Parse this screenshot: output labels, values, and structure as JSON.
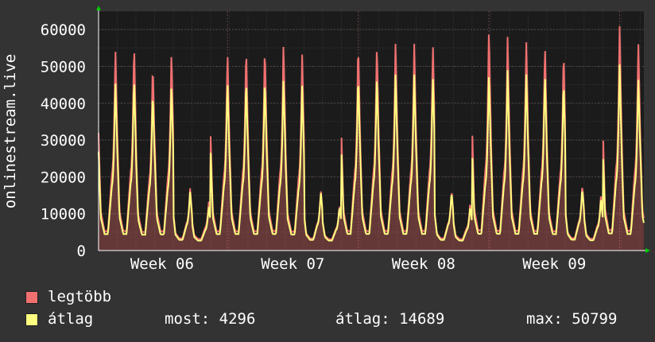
{
  "chart_data": {
    "type": "area",
    "ylabel": "onlinestream.live",
    "ylim": [
      0,
      65000
    ],
    "yticks": [
      0,
      10000,
      20000,
      30000,
      40000,
      50000,
      60000
    ],
    "ytick_labels": [
      "0",
      "10000",
      "20000",
      "30000",
      "40000",
      "50000",
      "60000"
    ],
    "xtick_labels": [
      "Week 06",
      "Week 07",
      "Week 08",
      "Week 09"
    ],
    "grid": true,
    "days": 29.2,
    "series": [
      {
        "name": "legtöbb",
        "color": "#f07070",
        "daily_peaks": [
          56000,
          57000,
          51500,
          55000,
          17000,
          13500,
          55000,
          56000,
          56000,
          57000,
          53500,
          16500,
          12500,
          57000,
          57000,
          57000,
          57000,
          57500,
          16500,
          13000,
          61000,
          58000,
          58000,
          57000,
          55000,
          18000,
          15000,
          61500,
          58000,
          59000
        ]
      },
      {
        "name": "átlag",
        "color": "#ffff80",
        "daily_peaks": [
          47000,
          48000,
          44000,
          46000,
          16000,
          12000,
          47000,
          47500,
          47500,
          47500,
          45000,
          16000,
          12000,
          48500,
          48500,
          48500,
          48500,
          48500,
          16000,
          12000,
          49000,
          49000,
          49000,
          49000,
          47000,
          17000,
          14000,
          51000,
          48000,
          50500
        ]
      }
    ]
  },
  "legend": {
    "max_label": "legtöbb",
    "avg_label": "átlag",
    "max_color": "#f07070",
    "avg_color": "#ffff80"
  },
  "stats": {
    "now": "most: 4296",
    "avg": "átlag: 14689",
    "max": "max: 50799"
  }
}
